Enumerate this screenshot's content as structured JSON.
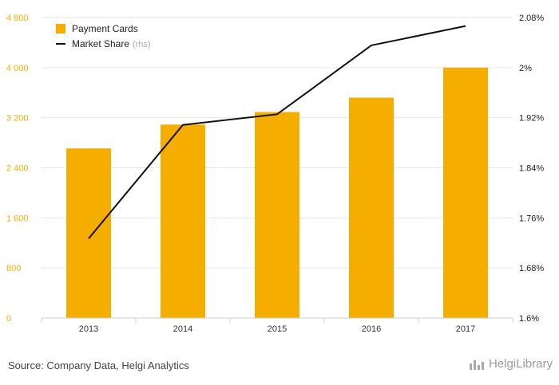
{
  "chart_data": {
    "type": "bar+line",
    "categories": [
      "2013",
      "2014",
      "2015",
      "2016",
      "2017"
    ],
    "series": [
      {
        "name": "Payment Cards",
        "axis": "left",
        "kind": "bar",
        "values": [
          2710,
          3090,
          3290,
          3520,
          4000
        ]
      },
      {
        "name": "Market Share",
        "axis": "right",
        "kind": "line",
        "values": [
          1.727,
          1.9085,
          1.9255,
          2.0355,
          2.0665
        ]
      }
    ],
    "legend_suffix": "(rhs)",
    "ylim_left": [
      0,
      4800
    ],
    "yticks_left": [
      "0",
      "800",
      "1 600",
      "2 400",
      "3 200",
      "4 000",
      "4 800"
    ],
    "ylim_right": [
      1.6,
      2.08
    ],
    "yticks_right": [
      "1.6%",
      "1.68%",
      "1.76%",
      "1.84%",
      "1.92%",
      "2%",
      "2.08%"
    ],
    "grid": true,
    "legend_position": "top-left",
    "colors": {
      "bar": "#f5ae00",
      "line": "#111111",
      "grid": "#e6e6e6"
    }
  },
  "footer": {
    "source": "Source: Company Data, Helgi Analytics",
    "logo_text": "HelgiLibrary"
  }
}
